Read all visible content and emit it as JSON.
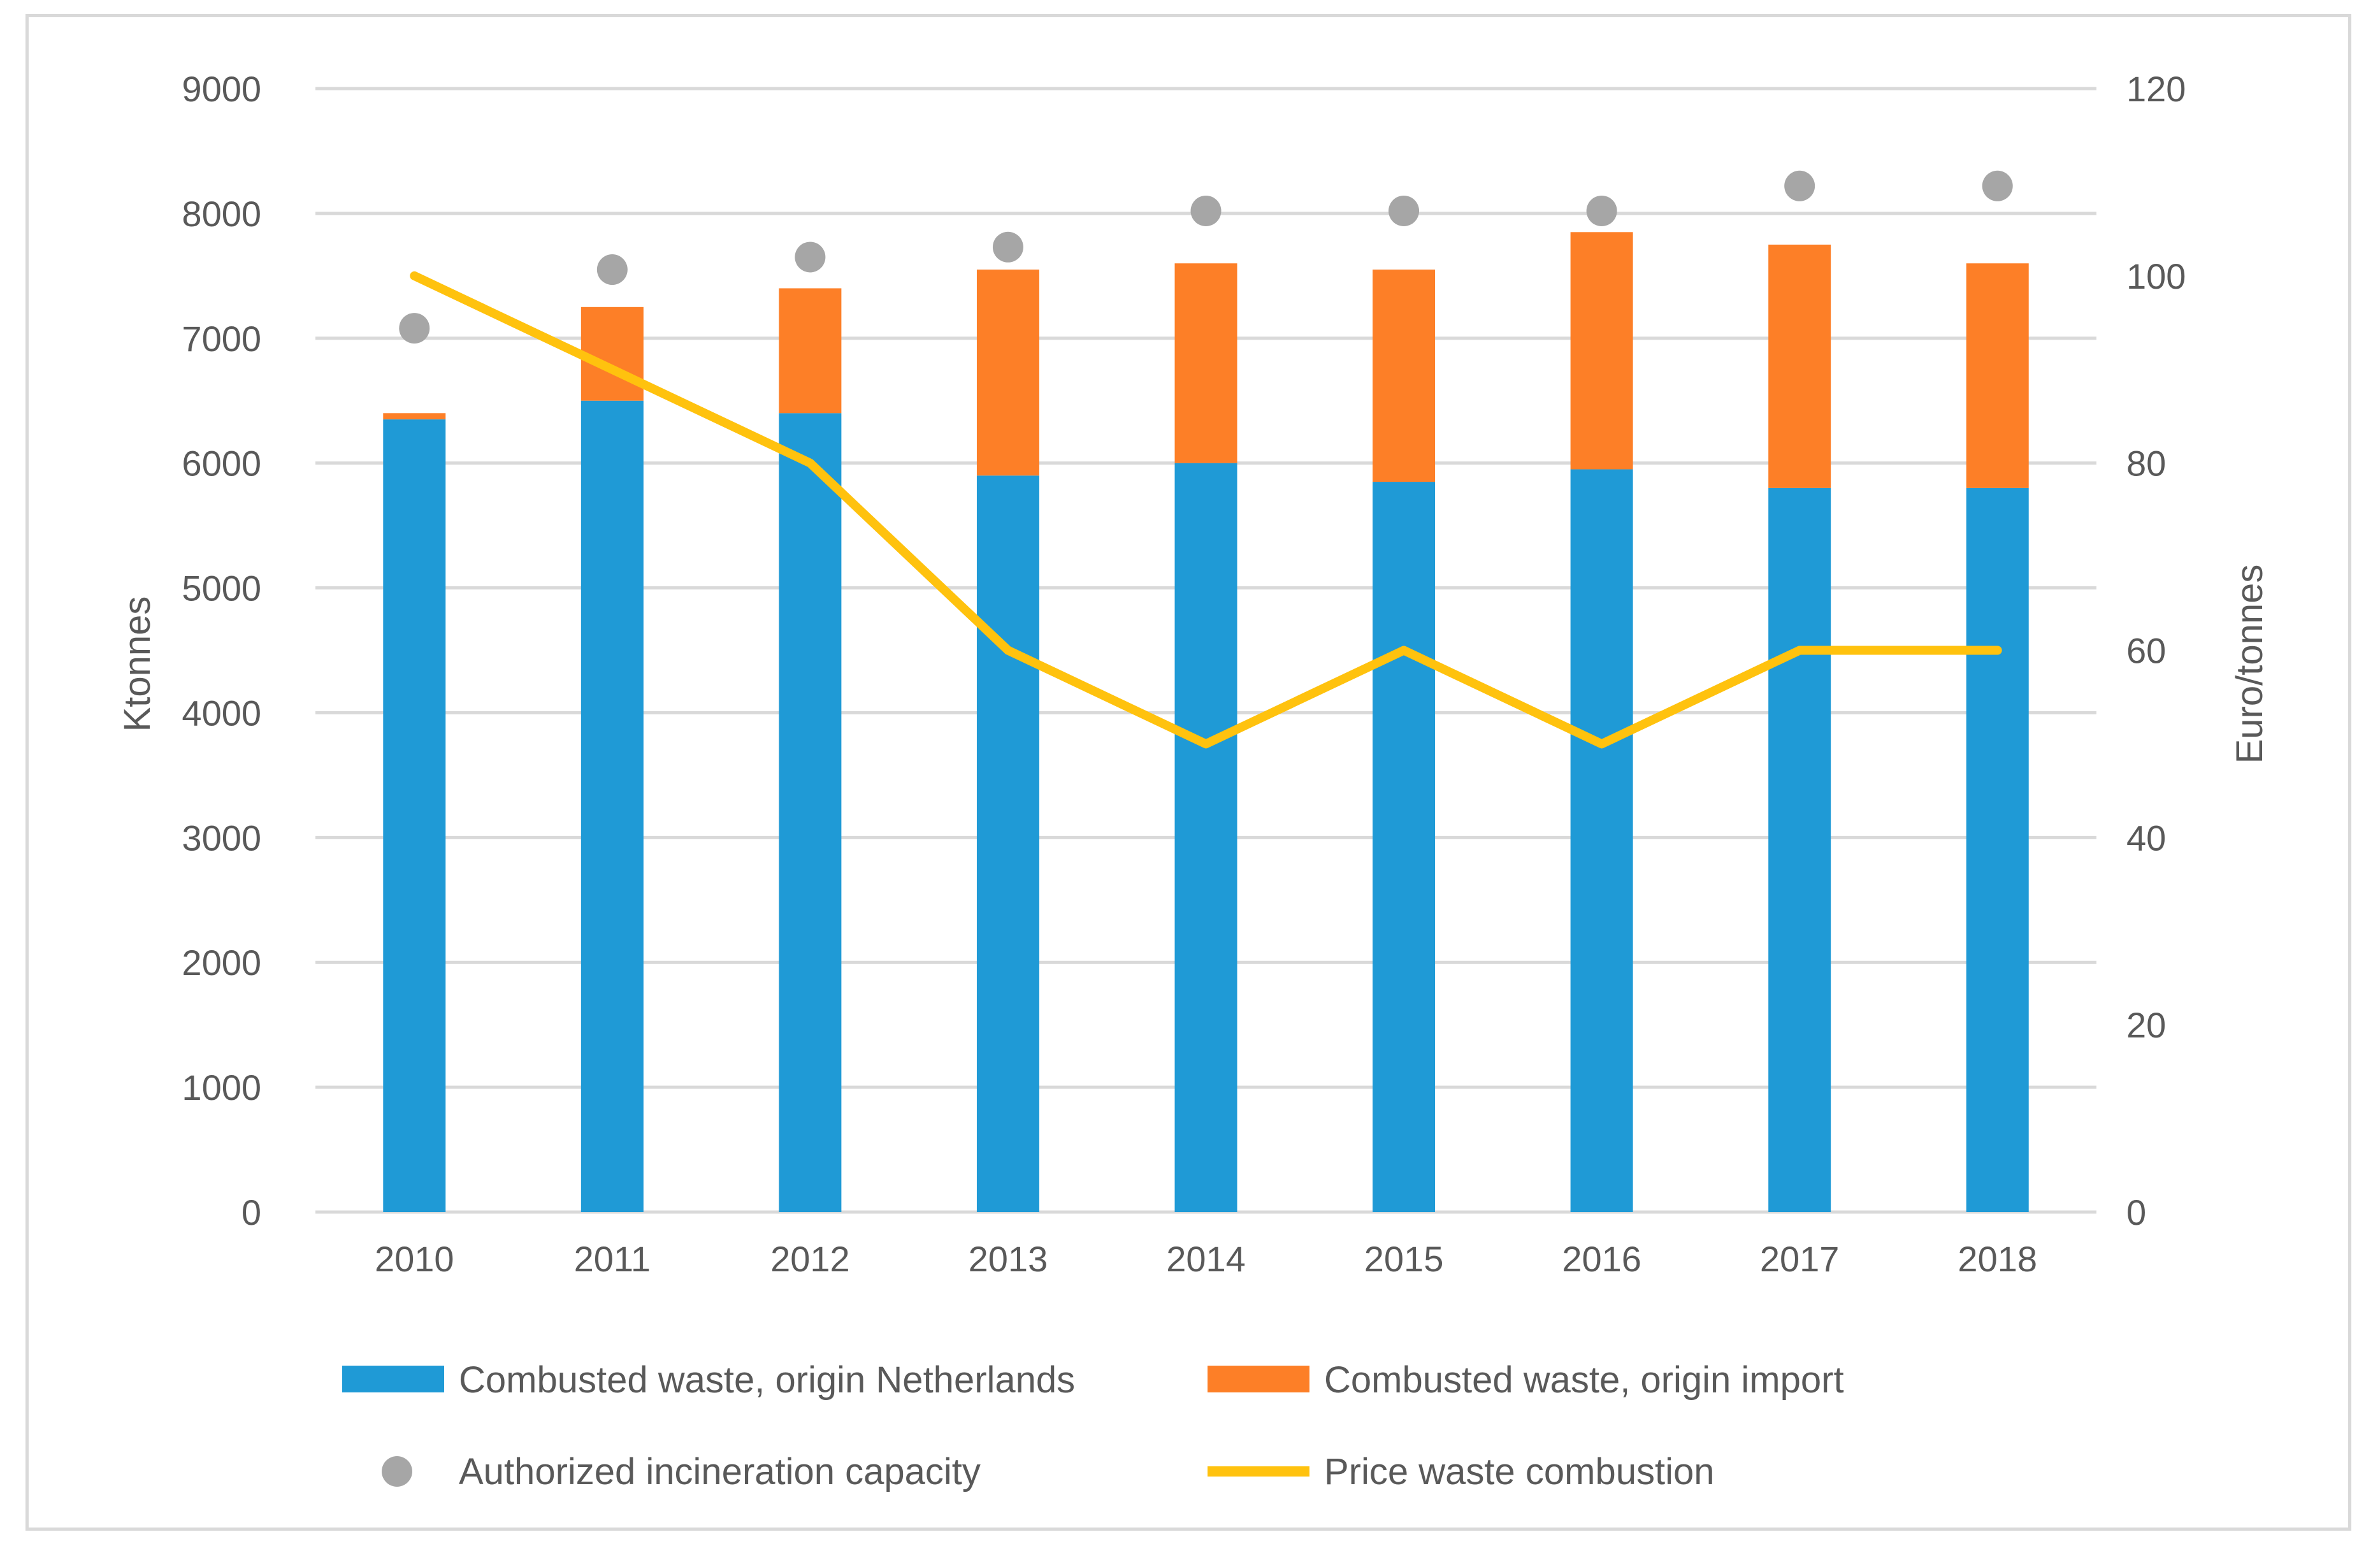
{
  "chart_data": {
    "type": "bar",
    "subtype": "stacked-bar-with-line-and-dots",
    "categories": [
      "2010",
      "2011",
      "2012",
      "2013",
      "2014",
      "2015",
      "2016",
      "2017",
      "2018"
    ],
    "series": [
      {
        "name": "Combusted waste, origin Netherlands",
        "kind": "bar",
        "axis": "left",
        "values": [
          6350,
          6500,
          6400,
          5900,
          6000,
          5850,
          5950,
          5800,
          5800
        ]
      },
      {
        "name": "Combusted waste, origin import",
        "kind": "bar",
        "axis": "left",
        "values": [
          50,
          750,
          1000,
          1650,
          1600,
          1700,
          1900,
          1950,
          1800
        ]
      },
      {
        "name": "Authorized incineration capacity",
        "kind": "dot",
        "axis": "left",
        "values": [
          7080,
          7550,
          7650,
          7730,
          8020,
          8020,
          8020,
          8220,
          8220
        ]
      },
      {
        "name": "Price waste combustion",
        "kind": "line",
        "axis": "right",
        "values": [
          100,
          90,
          80,
          60,
          50,
          60,
          50,
          60,
          60
        ]
      }
    ],
    "ylabel": "Ktonnes",
    "y2label": "Euro/tonnes",
    "ylim": [
      0,
      9000
    ],
    "y2lim": [
      0,
      120
    ],
    "yticks": [
      "0",
      "1000",
      "2000",
      "3000",
      "4000",
      "5000",
      "6000",
      "7000",
      "8000",
      "9000"
    ],
    "y2ticks": [
      "0",
      "20",
      "40",
      "60",
      "80",
      "100",
      "120"
    ],
    "grid": true,
    "legend_position": "bottom",
    "colors": {
      "netherlands": "#1f9ad6",
      "import": "#fd7f27",
      "capacity": "#a6a6a6",
      "price": "#ffc20e",
      "grid": "#d9d9d9",
      "axis_text": "#595959"
    }
  }
}
